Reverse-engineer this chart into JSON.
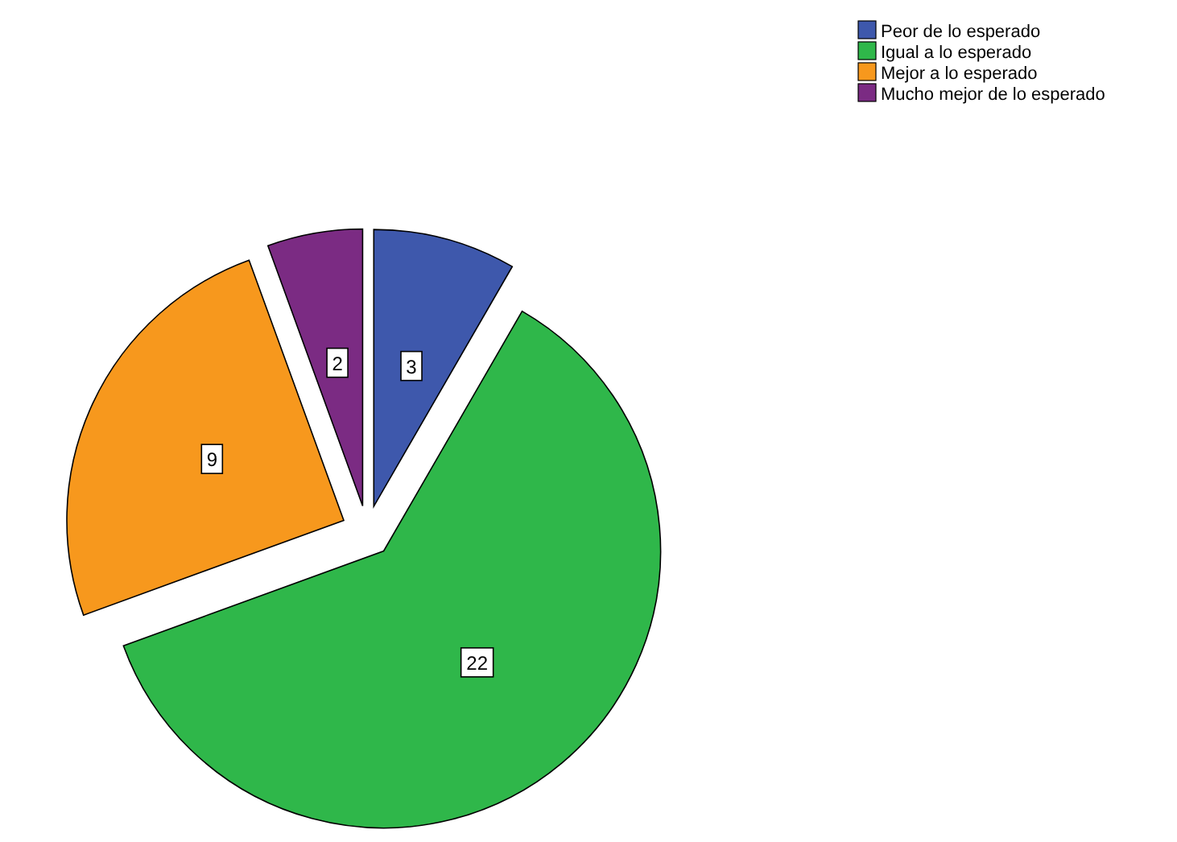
{
  "chart_data": {
    "type": "pie",
    "categories": [
      "Peor de lo esperado",
      "Igual a lo esperado",
      "Mejor a lo esperado",
      "Mucho mejor de lo esperado"
    ],
    "values": [
      3,
      22,
      9,
      2
    ],
    "colors": [
      "#3e58ac",
      "#2fb74a",
      "#f7981d",
      "#7b2b83"
    ],
    "data_labels": true,
    "legend": "top right"
  }
}
